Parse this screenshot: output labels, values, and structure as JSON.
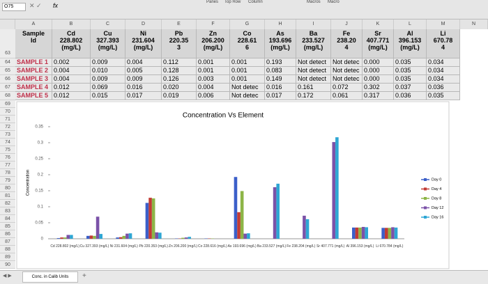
{
  "toolbar": {
    "cell_ref": "O75",
    "fx": "fx",
    "ribbon": [
      "Panes",
      "Top Row",
      "Column",
      "Macros",
      "Macro"
    ]
  },
  "columns": [
    "A",
    "B",
    "C",
    "D",
    "E",
    "F",
    "G",
    "H",
    "I",
    "J",
    "K",
    "L",
    "M",
    "N"
  ],
  "rows": [
    "63",
    "64",
    "65",
    "66",
    "67",
    "68",
    "69",
    "70",
    "71",
    "72",
    "73",
    "74",
    "75",
    "76",
    "77",
    "78",
    "79",
    "80",
    "81",
    "82",
    "83",
    "84",
    "85",
    "86",
    "87",
    "88",
    "89",
    "90"
  ],
  "table": {
    "header": [
      "Sample\nId",
      "Cd\n228.802\n(mg/L)",
      "Cu\n327.393\n(mg/L)",
      "Ni\n231.604\n(mg/L)",
      "Pb\n220.35\n3",
      "Zn\n206.200\n(mg/L)",
      "Co\n228.61\n6",
      "As\n193.696\n(mg/L)",
      "Ba\n233.527\n(mg/L)",
      "Fe\n238.20\n4",
      "Sr\n407.771\n(mg/L)",
      "Al\n396.153\n(mg/L)",
      "Li\n670.78\n4"
    ],
    "rows": [
      [
        "SAMPLE 1",
        "0.002",
        "0.009",
        "0.004",
        "0.112",
        "0.001",
        "0.001",
        "0.193",
        "Not detect",
        "Not detec",
        "0.000",
        "0.035",
        "0.034"
      ],
      [
        "SAMPLE 2",
        "0.004",
        "0.010",
        "0.005",
        "0.128",
        "0.001",
        "0.001",
        "0.083",
        "Not detect",
        "Not detec",
        "0.000",
        "0.035",
        "0.034"
      ],
      [
        "SAMPLE 3",
        "0.004",
        "0.009",
        "0.009",
        "0.126",
        "0.003",
        "0.001",
        "0.149",
        "Not detect",
        "Not detec",
        "0.000",
        "0.035",
        "0.034"
      ],
      [
        "SAMPLE 4",
        "0.012",
        "0.069",
        "0.016",
        "0.020",
        "0.004",
        "Not detec",
        "0.016",
        "0.161",
        "0.072",
        "0.302",
        "0.037",
        "0.036"
      ],
      [
        "SAMPLE 5",
        "0.012",
        "0.015",
        "0.017",
        "0.019",
        "0.006",
        "Not detec",
        "0.017",
        "0.172",
        "0.061",
        "0.317",
        "0.036",
        "0.035"
      ]
    ]
  },
  "chart_data": {
    "type": "bar",
    "title": "Concentration Vs Element",
    "y_label": "Concentration",
    "categories": [
      "Cd 228.802 (mg/L)",
      "Cu 327.393 (mg/L)",
      "Ni 231.604 (mg/L)",
      "Pb 220.353 (mg/L)",
      "Zn 206.200 (mg/L)",
      "Co 228.616 (mg/L)",
      "As 193.696 (mg/L)",
      "Ba 233.527 (mg/L)",
      "Fe 238.204 (mg/L)",
      "Sr 407.771 (mg/L)",
      "Al 396.153 (mg/L)",
      "Li 670.784 (mg/L)"
    ],
    "series": [
      {
        "name": "Day 0",
        "color": "#3b5fc9",
        "values": [
          0.002,
          0.009,
          0.004,
          0.112,
          0.001,
          0.001,
          0.193,
          null,
          null,
          0.0,
          0.035,
          0.034
        ]
      },
      {
        "name": "Day 4",
        "color": "#c23b35",
        "values": [
          0.004,
          0.01,
          0.005,
          0.128,
          0.001,
          0.001,
          0.083,
          null,
          null,
          0.0,
          0.035,
          0.034
        ]
      },
      {
        "name": "Day 8",
        "color": "#8db547",
        "values": [
          0.004,
          0.009,
          0.009,
          0.126,
          0.003,
          0.001,
          0.149,
          null,
          null,
          0.0,
          0.035,
          0.034
        ]
      },
      {
        "name": "Day 12",
        "color": "#7b52a8",
        "values": [
          0.012,
          0.069,
          0.016,
          0.02,
          0.004,
          null,
          0.016,
          0.161,
          0.072,
          0.302,
          0.037,
          0.036
        ]
      },
      {
        "name": "Day 16",
        "color": "#2ea6d4",
        "values": [
          0.012,
          0.015,
          0.017,
          0.019,
          0.006,
          null,
          0.017,
          0.172,
          0.061,
          0.317,
          0.036,
          0.035
        ]
      }
    ],
    "ylim": [
      0,
      0.35
    ],
    "yticks": [
      0,
      0.05,
      0.1,
      0.15,
      0.2,
      0.25,
      0.3,
      0.35
    ],
    "grid": false,
    "legend": "right"
  },
  "sheet_tab": "Conc. in Calib Units"
}
